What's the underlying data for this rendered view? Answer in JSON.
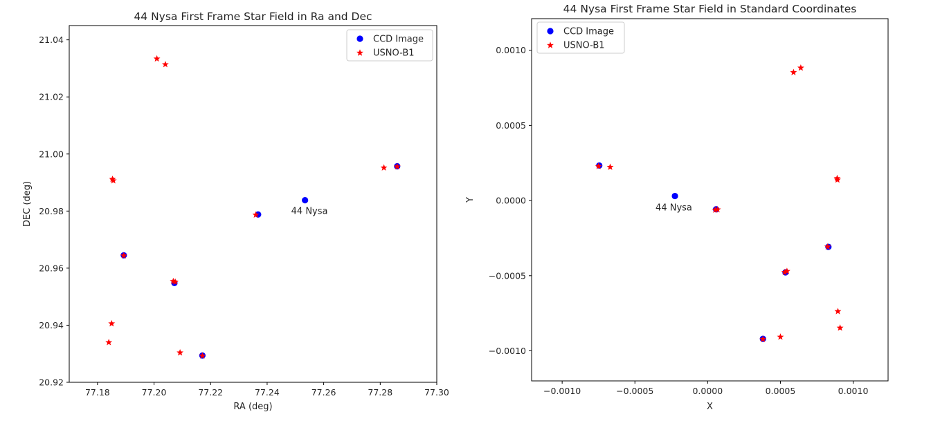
{
  "chart_data": [
    {
      "type": "scatter",
      "title": "44 Nysa First Frame Star Field in Ra and Dec",
      "xlabel": "RA (deg)",
      "ylabel": "DEC (deg)",
      "xlim": [
        77.17,
        77.3
      ],
      "ylim": [
        20.92,
        21.045
      ],
      "xticks": [
        77.18,
        77.2,
        77.22,
        77.24,
        77.26,
        77.28,
        77.3
      ],
      "xtick_labels": [
        "77.18",
        "77.20",
        "77.22",
        "77.24",
        "77.26",
        "77.28",
        "77.30"
      ],
      "yticks": [
        20.92,
        20.94,
        20.96,
        20.98,
        21.0,
        21.02,
        21.04
      ],
      "ytick_labels": [
        "20.92",
        "20.94",
        "20.96",
        "20.98",
        "21.00",
        "21.02",
        "21.04"
      ],
      "grid": false,
      "legend_position": "top-right",
      "series": [
        {
          "name": "CCD Image",
          "marker": "circle",
          "color": "#0000ff",
          "points": [
            {
              "x": 77.1893,
              "y": 20.9645
            },
            {
              "x": 77.2072,
              "y": 20.9548
            },
            {
              "x": 77.2171,
              "y": 20.9294
            },
            {
              "x": 77.2368,
              "y": 20.9788
            },
            {
              "x": 77.2534,
              "y": 20.9838
            },
            {
              "x": 77.286,
              "y": 20.9957
            }
          ]
        },
        {
          "name": "USNO-B1",
          "marker": "star",
          "color": "#ff0000",
          "points": [
            {
              "x": 77.201,
              "y": 21.0335
            },
            {
              "x": 77.204,
              "y": 21.0315
            },
            {
              "x": 77.1853,
              "y": 20.9913
            },
            {
              "x": 77.1856,
              "y": 20.9908
            },
            {
              "x": 77.1893,
              "y": 20.9645
            },
            {
              "x": 77.2075,
              "y": 20.9553
            },
            {
              "x": 77.2068,
              "y": 20.9555
            },
            {
              "x": 77.185,
              "y": 20.9407
            },
            {
              "x": 77.184,
              "y": 20.9341
            },
            {
              "x": 77.2092,
              "y": 20.9305
            },
            {
              "x": 77.2171,
              "y": 20.9294
            },
            {
              "x": 77.236,
              "y": 20.9788
            },
            {
              "x": 77.2813,
              "y": 20.9953
            },
            {
              "x": 77.286,
              "y": 20.9957
            }
          ]
        }
      ],
      "annotations": [
        {
          "text": "44 Nysa",
          "x": 77.2534,
          "y": 20.9838
        }
      ]
    },
    {
      "type": "scatter",
      "title": "44 Nysa First Frame Star Field in Standard Coordinates",
      "xlabel": "X",
      "ylabel": "Y",
      "xlim": [
        -0.00121,
        0.00124
      ],
      "ylim": [
        -0.0012,
        0.00121
      ],
      "xticks": [
        -0.001,
        -0.0005,
        0.0,
        0.0005,
        0.001
      ],
      "xtick_labels": [
        "−0.0010",
        "−0.0005",
        "0.0000",
        "0.0005",
        "0.0010"
      ],
      "yticks": [
        -0.001,
        -0.0005,
        0.0,
        0.0005,
        0.001
      ],
      "ytick_labels": [
        "−0.0010",
        "−0.0005",
        "0.0000",
        "0.0005",
        "0.0010"
      ],
      "grid": false,
      "legend_position": "top-left",
      "series": [
        {
          "name": "CCD Image",
          "marker": "circle",
          "color": "#0000ff",
          "points": [
            {
              "x": -0.000745,
              "y": 0.000233
            },
            {
              "x": -0.000225,
              "y": 3e-05
            },
            {
              "x": 5.8e-05,
              "y": -5.8e-05
            },
            {
              "x": 0.000535,
              "y": -0.000478
            },
            {
              "x": 0.00083,
              "y": -0.000308
            },
            {
              "x": 0.00038,
              "y": -0.00092
            }
          ]
        },
        {
          "name": "USNO-B1",
          "marker": "star",
          "color": "#ff0000",
          "points": [
            {
              "x": -0.00075,
              "y": 0.00023
            },
            {
              "x": -0.00067,
              "y": 0.000225
            },
            {
              "x": 5.2e-05,
              "y": -6e-05
            },
            {
              "x": 6.8e-05,
              "y": -5.8e-05
            },
            {
              "x": 0.00053,
              "y": -0.000475
            },
            {
              "x": 0.000545,
              "y": -0.000468
            },
            {
              "x": 0.000825,
              "y": -0.000305
            },
            {
              "x": 0.00089,
              "y": 0.00015
            },
            {
              "x": 0.000892,
              "y": 0.00014
            },
            {
              "x": 0.00059,
              "y": 0.000855
            },
            {
              "x": 0.00064,
              "y": 0.000885
            },
            {
              "x": 0.000895,
              "y": -0.000735
            },
            {
              "x": 0.00091,
              "y": -0.000845
            },
            {
              "x": 0.0005,
              "y": -0.000905
            },
            {
              "x": 0.00038,
              "y": -0.00092
            }
          ]
        }
      ],
      "annotations": [
        {
          "text": "44 Nysa",
          "x": -0.000225,
          "y": 3e-05
        }
      ]
    }
  ]
}
